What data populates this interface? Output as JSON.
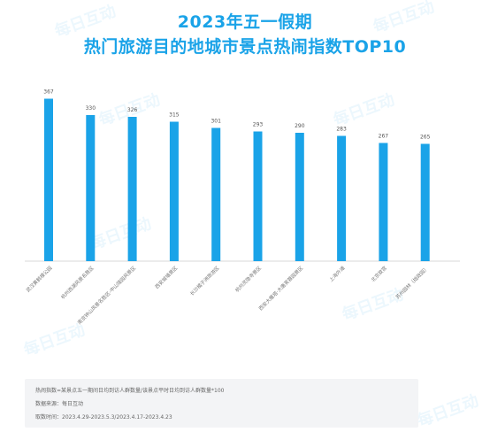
{
  "titles": {
    "line1": "2023年五一假期",
    "line2": "热门旅游目的地城市景点热闹指数TOP10"
  },
  "watermark": "每日互动",
  "chart_data": {
    "type": "bar",
    "categories": [
      "武汉黄鹤楼公园",
      "杭州西湖风景名胜区",
      "南京钟山风景名胜区-中山陵园风景区",
      "西安城墙景区",
      "长沙橘子洲旅游区",
      "杭州灵隐寺景区",
      "西安大雁塔·大唐芙蓉园景区",
      "上海外滩",
      "北京故宫",
      "苏州园林（拙政园）"
    ],
    "values": [
      367,
      330,
      326,
      315,
      301,
      293,
      290,
      283,
      267,
      265
    ],
    "ylim": [
      0,
      400
    ],
    "grid": false,
    "legend": "none",
    "bar_color": "#1aa3e8"
  },
  "footnote": {
    "line1": "热闹指数=某景点五一期间日均到访人群数量/该景点平时日均到访人群数量*100",
    "line2": "数据来源：每日互动",
    "line3": "取数时间：2023.4.29-2023.5.3/2023.4.17-2023.4.23"
  }
}
